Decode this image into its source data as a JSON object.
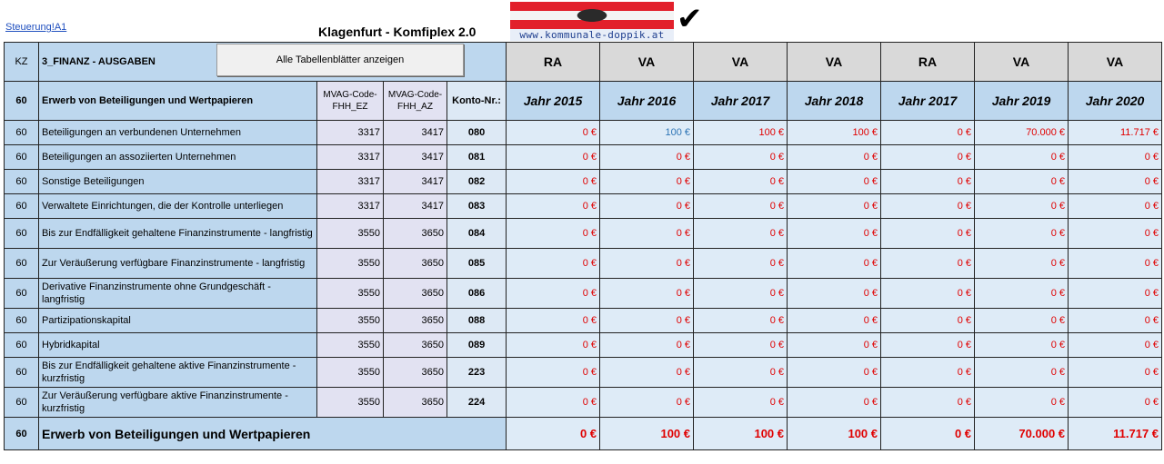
{
  "header": {
    "cell_ref_link": "Steuerung!A1",
    "title": "Klagenfurt - Komfiplex 2.0",
    "logo_text": "www.kommunale-doppik.at",
    "show_sheets_button": "Alle Tabellenblätter anzeigen"
  },
  "table": {
    "kz_header": "KZ",
    "section_title": "3_FINANZ - AUSGABEN",
    "column_types": [
      "RA",
      "VA",
      "VA",
      "VA",
      "RA",
      "VA",
      "VA"
    ],
    "kz_value": "60",
    "group_title": "Erwerb von Beteiligungen und Wertpapieren",
    "mvag_ez_header": "MVAG-Code-FHH_EZ",
    "mvag_az_header": "MVAG-Code-FHH_AZ",
    "konto_header": "Konto-Nr.:",
    "years": [
      "Jahr 2015",
      "Jahr 2016",
      "Jahr 2017",
      "Jahr 2018",
      "Jahr 2017",
      "Jahr 2019",
      "Jahr 2020"
    ],
    "rows": [
      {
        "kz": "60",
        "label": "Beteiligungen an verbundenen Unternehmen",
        "ez": "3317",
        "az": "3417",
        "konto": "080",
        "values": [
          "0 €",
          "100 €",
          "100 €",
          "100 €",
          "0 €",
          "70.000 €",
          "11.717 €"
        ]
      },
      {
        "kz": "60",
        "label": "Beteiligungen an assoziierten Unternehmen",
        "ez": "3317",
        "az": "3417",
        "konto": "081",
        "values": [
          "0 €",
          "0 €",
          "0 €",
          "0 €",
          "0 €",
          "0 €",
          "0 €"
        ]
      },
      {
        "kz": "60",
        "label": "Sonstige Beteiligungen",
        "ez": "3317",
        "az": "3417",
        "konto": "082",
        "values": [
          "0 €",
          "0 €",
          "0 €",
          "0 €",
          "0 €",
          "0 €",
          "0 €"
        ]
      },
      {
        "kz": "60",
        "label": "Verwaltete Einrichtungen, die der Kontrolle unterliegen",
        "ez": "3317",
        "az": "3417",
        "konto": "083",
        "values": [
          "0 €",
          "0 €",
          "0 €",
          "0 €",
          "0 €",
          "0 €",
          "0 €"
        ]
      },
      {
        "kz": "60",
        "label": "Bis zur Endfälligkeit gehaltene Finanzinstrumente - langfristig",
        "ez": "3550",
        "az": "3650",
        "konto": "084",
        "values": [
          "0 €",
          "0 €",
          "0 €",
          "0 €",
          "0 €",
          "0 €",
          "0 €"
        ]
      },
      {
        "kz": "60",
        "label": "Zur Veräußerung verfügbare Finanzinstrumente - langfristig",
        "ez": "3550",
        "az": "3650",
        "konto": "085",
        "values": [
          "0 €",
          "0 €",
          "0 €",
          "0 €",
          "0 €",
          "0 €",
          "0 €"
        ]
      },
      {
        "kz": "60",
        "label": "Derivative Finanzinstrumente ohne Grundgeschäft - langfristig",
        "ez": "3550",
        "az": "3650",
        "konto": "086",
        "values": [
          "0 €",
          "0 €",
          "0 €",
          "0 €",
          "0 €",
          "0 €",
          "0 €"
        ]
      },
      {
        "kz": "60",
        "label": "Partizipationskapital",
        "ez": "3550",
        "az": "3650",
        "konto": "088",
        "values": [
          "0 €",
          "0 €",
          "0 €",
          "0 €",
          "0 €",
          "0 €",
          "0 €"
        ]
      },
      {
        "kz": "60",
        "label": "Hybridkapital",
        "ez": "3550",
        "az": "3650",
        "konto": "089",
        "values": [
          "0 €",
          "0 €",
          "0 €",
          "0 €",
          "0 €",
          "0 €",
          "0 €"
        ]
      },
      {
        "kz": "60",
        "label": "Bis zur Endfälligkeit gehaltene aktive Finanzinstrumente - kurzfristig",
        "ez": "3550",
        "az": "3650",
        "konto": "223",
        "values": [
          "0 €",
          "0 €",
          "0 €",
          "0 €",
          "0 €",
          "0 €",
          "0 €"
        ]
      },
      {
        "kz": "60",
        "label": "Zur Veräußerung verfügbare aktive Finanzinstrumente - kurzfristig",
        "ez": "3550",
        "az": "3650",
        "konto": "224",
        "values": [
          "0 €",
          "0 €",
          "0 €",
          "0 €",
          "0 €",
          "0 €",
          "0 €"
        ]
      }
    ],
    "total": {
      "kz": "60",
      "label": "Erwerb von Beteiligungen und Wertpapieren",
      "values": [
        "0 €",
        "100 €",
        "100 €",
        "100 €",
        "0 €",
        "70.000 €",
        "11.717 €"
      ]
    }
  },
  "colors": {
    "value_red": "#e00000",
    "value_blue": "#2e75b6",
    "label_bg": "#bdd7ee",
    "header_bg": "#d9d9d9"
  }
}
